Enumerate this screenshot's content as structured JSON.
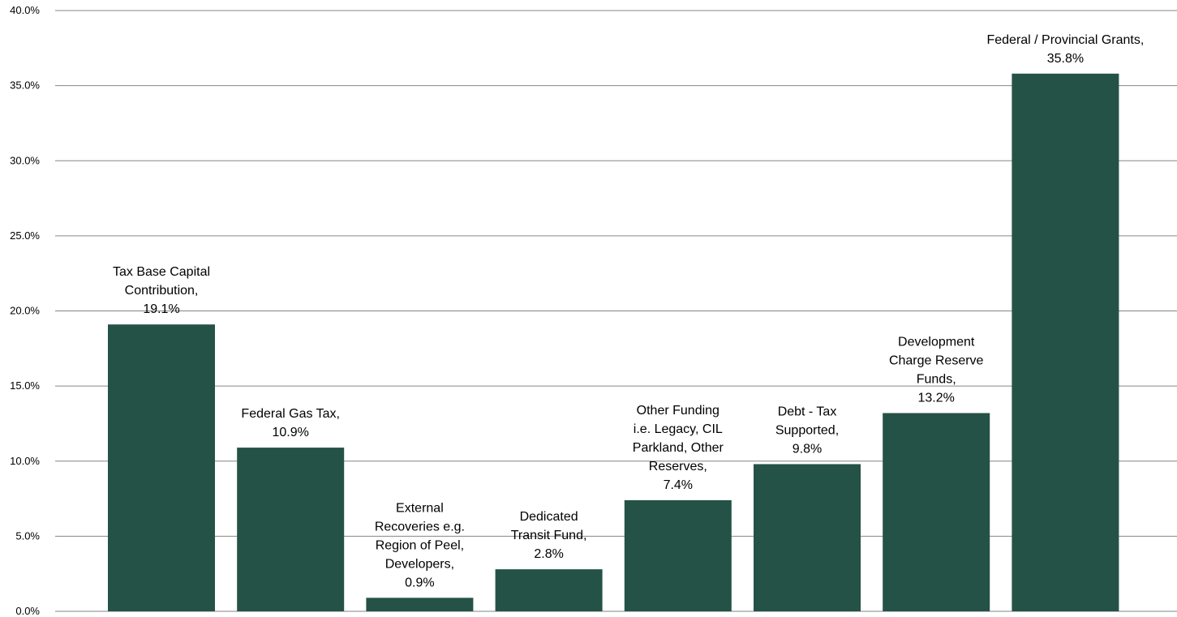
{
  "chart_data": {
    "type": "bar",
    "categories": [
      "Tax Base Capital Contribution",
      "Federal Gas Tax",
      "External Recoveries e.g. Region of Peel, Developers",
      "Dedicated Transit Fund",
      "Other Funding i.e. Legacy, CIL Parkland, Other Reserves",
      "Debt - Tax Supported",
      "Development Charge Reserve Funds",
      "Federal / Provincial Grants"
    ],
    "values": [
      19.1,
      10.9,
      0.9,
      2.8,
      7.4,
      9.8,
      13.2,
      35.8
    ],
    "data_labels": [
      [
        "Tax Base Capital",
        "Contribution,",
        "19.1%"
      ],
      [
        "Federal Gas Tax,",
        "10.9%"
      ],
      [
        "External",
        "Recoveries e.g.",
        "Region of Peel,",
        "Developers,",
        "0.9%"
      ],
      [
        "Dedicated",
        "Transit Fund,",
        "2.8%"
      ],
      [
        "Other Funding",
        "i.e. Legacy, CIL",
        "Parkland, Other",
        "Reserves,",
        "7.4%"
      ],
      [
        "Debt - Tax",
        "Supported,",
        "9.8%"
      ],
      [
        "Development",
        "Charge Reserve",
        "Funds,",
        "13.2%"
      ],
      [
        "Federal / Provincial Grants,",
        "35.8%"
      ]
    ],
    "y_ticks": [
      "0.0%",
      "5.0%",
      "10.0%",
      "15.0%",
      "20.0%",
      "25.0%",
      "30.0%",
      "35.0%",
      "40.0%"
    ],
    "ylim": [
      0,
      40
    ],
    "grid": true,
    "legend": "none",
    "colors": {
      "bar": "#255246",
      "grid": "#868686",
      "text": "#000000"
    }
  }
}
